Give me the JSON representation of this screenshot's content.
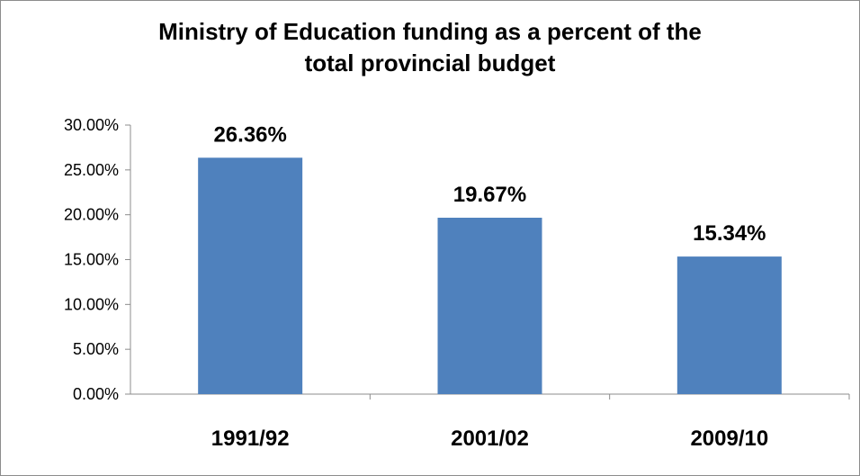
{
  "chart_data": {
    "type": "bar",
    "title_line1": "Ministry of Education funding as a percent of the",
    "title_line2": "total provincial budget",
    "categories": [
      "1991/92",
      "2001/02",
      "2009/10"
    ],
    "values": [
      26.36,
      19.67,
      15.34
    ],
    "data_labels": [
      "26.36%",
      "19.67%",
      "15.34%"
    ],
    "ylim": [
      0,
      30
    ],
    "yticks": [
      0,
      5,
      10,
      15,
      20,
      25,
      30
    ],
    "ytick_labels": [
      "0.00%",
      "5.00%",
      "10.00%",
      "15.00%",
      "20.00%",
      "25.00%",
      "30.00%"
    ],
    "xlabel": "",
    "ylabel": "",
    "grid": false,
    "legend": "none",
    "bar_color": "#4f81bd"
  }
}
